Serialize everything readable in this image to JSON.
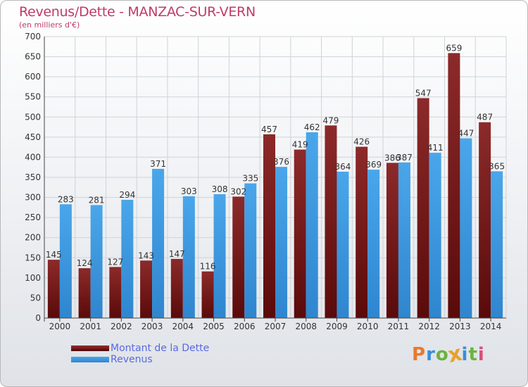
{
  "header": {
    "title": "Revenus/Dette - MANZAC-SUR-VERN",
    "subtitle": "(en milliers d'€)"
  },
  "chart_data": {
    "type": "bar",
    "title": "Revenus/Dette - MANZAC-SUR-VERN",
    "ylabel": "(en milliers d'€)",
    "xlabel": "",
    "ylim": [
      0,
      700
    ],
    "yticks": [
      0,
      50,
      100,
      150,
      200,
      250,
      300,
      350,
      400,
      450,
      500,
      550,
      600,
      650,
      700
    ],
    "grid": true,
    "legend_position": "bottom-left",
    "categories": [
      "2000",
      "2001",
      "2002",
      "2003",
      "2004",
      "2005",
      "2006",
      "2007",
      "2008",
      "2009",
      "2010",
      "2011",
      "2012",
      "2013",
      "2014"
    ],
    "series": [
      {
        "name": "Montant de la Dette",
        "color": "#7a1a1a",
        "values": [
          145,
          124,
          127,
          143,
          147,
          116,
          302,
          457,
          419,
          479,
          426,
          386,
          547,
          659,
          487
        ]
      },
      {
        "name": "Revenus",
        "color": "#3a98e0",
        "values": [
          283,
          281,
          294,
          371,
          303,
          308,
          335,
          376,
          462,
          364,
          369,
          387,
          411,
          447,
          365
        ]
      }
    ]
  },
  "logo": {
    "text": "Proxiti",
    "colors": [
      "#e8792b",
      "#3b8ed8",
      "#6cb33f",
      "#e8a12b",
      "#3b8ed8",
      "#6cb33f",
      "#d94f7a"
    ]
  }
}
